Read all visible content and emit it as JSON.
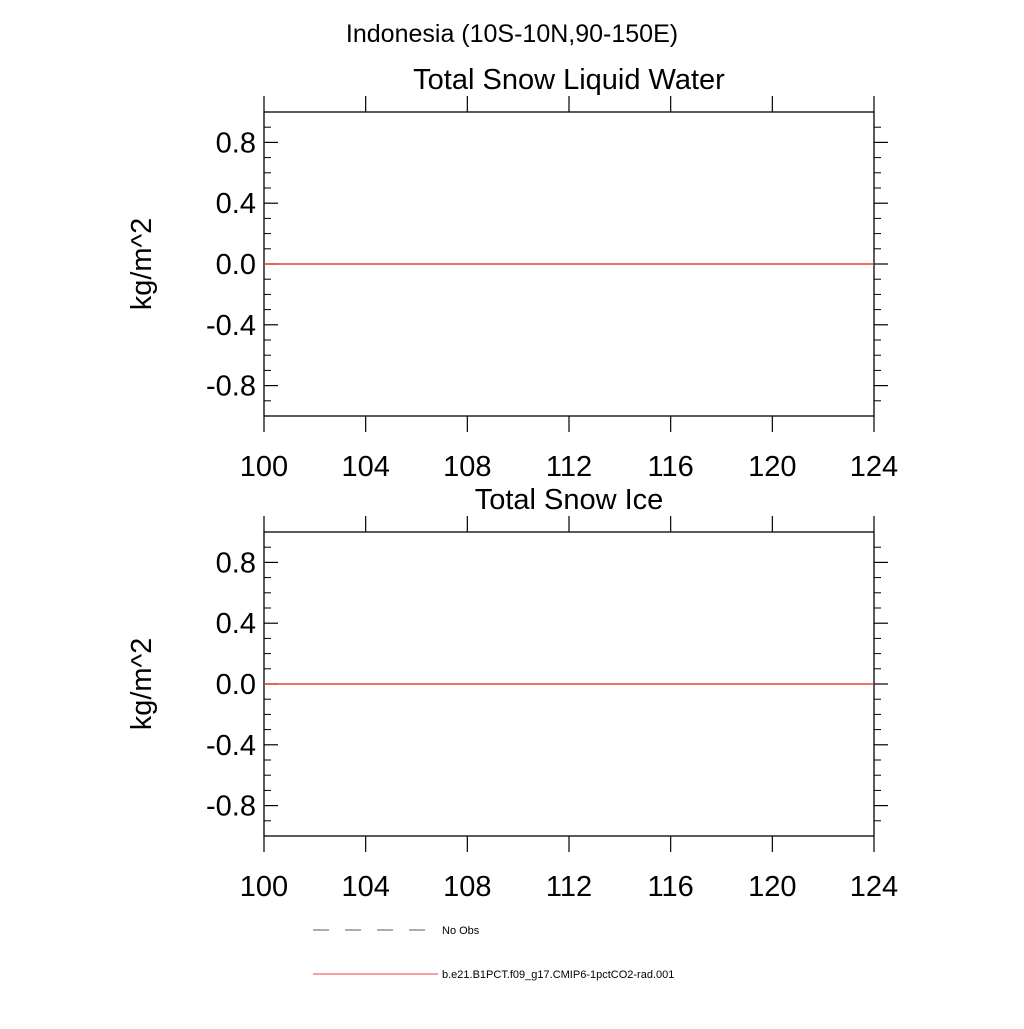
{
  "page_title": "Indonesia (10S-10N,90-150E)",
  "chart_data": [
    {
      "type": "line",
      "title": "Total Snow Liquid Water",
      "xlabel": "",
      "ylabel": "kg/m^2",
      "xlim": [
        100,
        124
      ],
      "ylim": [
        -1,
        1
      ],
      "x_ticks": [
        100,
        104,
        108,
        112,
        116,
        120,
        124
      ],
      "y_ticks": [
        -0.8,
        -0.4,
        0.0,
        0.4,
        0.8
      ],
      "x_tick_labels": [
        "100",
        "104",
        "108",
        "112",
        "116",
        "120",
        "124"
      ],
      "y_tick_labels": [
        "-0.8",
        "-0.4",
        "0.0",
        "0.4",
        "0.8"
      ],
      "grid": false,
      "series": [
        {
          "name": "b.e21.B1PCT.f09_g17.CMIP6-1pctCO2-rad.001",
          "color": "#e8413c",
          "dash": "solid",
          "x": [
            100,
            124
          ],
          "y": [
            0,
            0
          ]
        }
      ]
    },
    {
      "type": "line",
      "title": "Total Snow Ice",
      "xlabel": "",
      "ylabel": "kg/m^2",
      "xlim": [
        100,
        124
      ],
      "ylim": [
        -1,
        1
      ],
      "x_ticks": [
        100,
        104,
        108,
        112,
        116,
        120,
        124
      ],
      "y_ticks": [
        -0.8,
        -0.4,
        0.0,
        0.4,
        0.8
      ],
      "x_tick_labels": [
        "100",
        "104",
        "108",
        "112",
        "116",
        "120",
        "124"
      ],
      "y_tick_labels": [
        "-0.8",
        "-0.4",
        "0.0",
        "0.4",
        "0.8"
      ],
      "grid": false,
      "series": [
        {
          "name": "b.e21.B1PCT.f09_g17.CMIP6-1pctCO2-rad.001",
          "color": "#e8413c",
          "dash": "solid",
          "x": [
            100,
            124
          ],
          "y": [
            0,
            0
          ]
        }
      ]
    }
  ],
  "legend": {
    "placement": "bottom-left",
    "entries": [
      {
        "label": "No Obs",
        "color": "#55557a",
        "dash": "dashed"
      },
      {
        "label": "b.e21.B1PCT.f09_g17.CMIP6-1pctCO2-rad.001",
        "color": "#e8413c",
        "dash": "solid"
      }
    ]
  }
}
